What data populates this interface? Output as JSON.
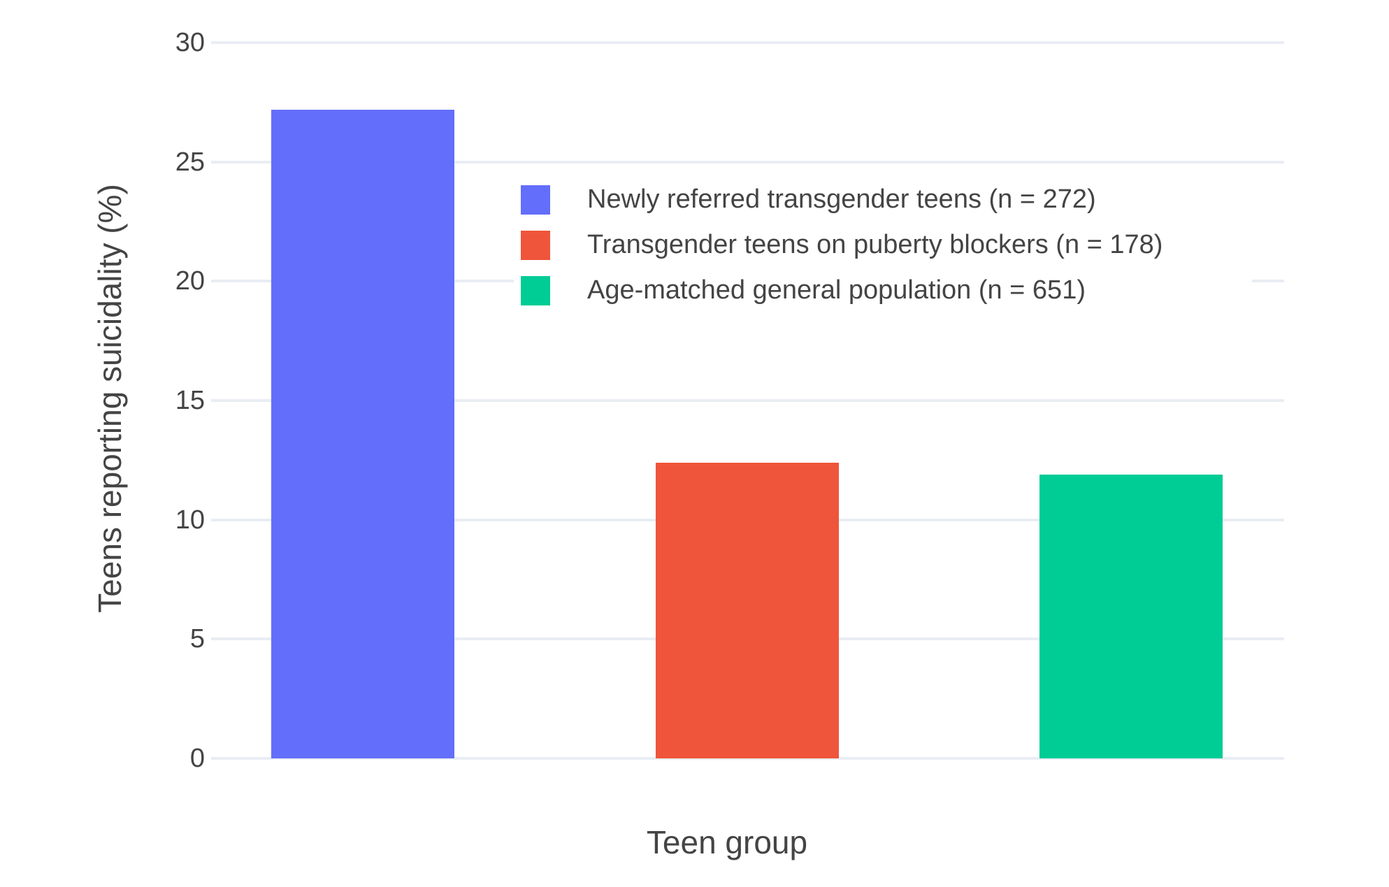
{
  "figure": {
    "background_color": "#ffffff",
    "text_color": "#444444",
    "grid_color": "#E9EDF4"
  },
  "chart_data": {
    "type": "bar",
    "title": "",
    "xlabel": "Teen group",
    "ylabel": "Teens reporting suicidality (%)",
    "categories": [
      "Newly referred transgender teens (n = 272)",
      "Transgender teens on puberty blockers (n = 178)",
      "Age-matched general population (n = 651)"
    ],
    "values": [
      27.2,
      12.4,
      11.9
    ],
    "bar_colors": [
      "#636EFA",
      "#EF553B",
      "#00CC96"
    ],
    "ylim": [
      0,
      30
    ],
    "yticks": [
      0,
      5,
      10,
      15,
      20,
      25,
      30
    ],
    "grid": "horizontal",
    "x_tick_labels_visible": false,
    "legend": {
      "position": "inside-upper-right",
      "entries": [
        {
          "label": "Newly referred transgender teens (n = 272)",
          "color": "#636EFA"
        },
        {
          "label": "Transgender teens on puberty blockers (n = 178)",
          "color": "#EF553B"
        },
        {
          "label": "Age-matched general population (n = 651)",
          "color": "#00CC96"
        }
      ]
    }
  }
}
